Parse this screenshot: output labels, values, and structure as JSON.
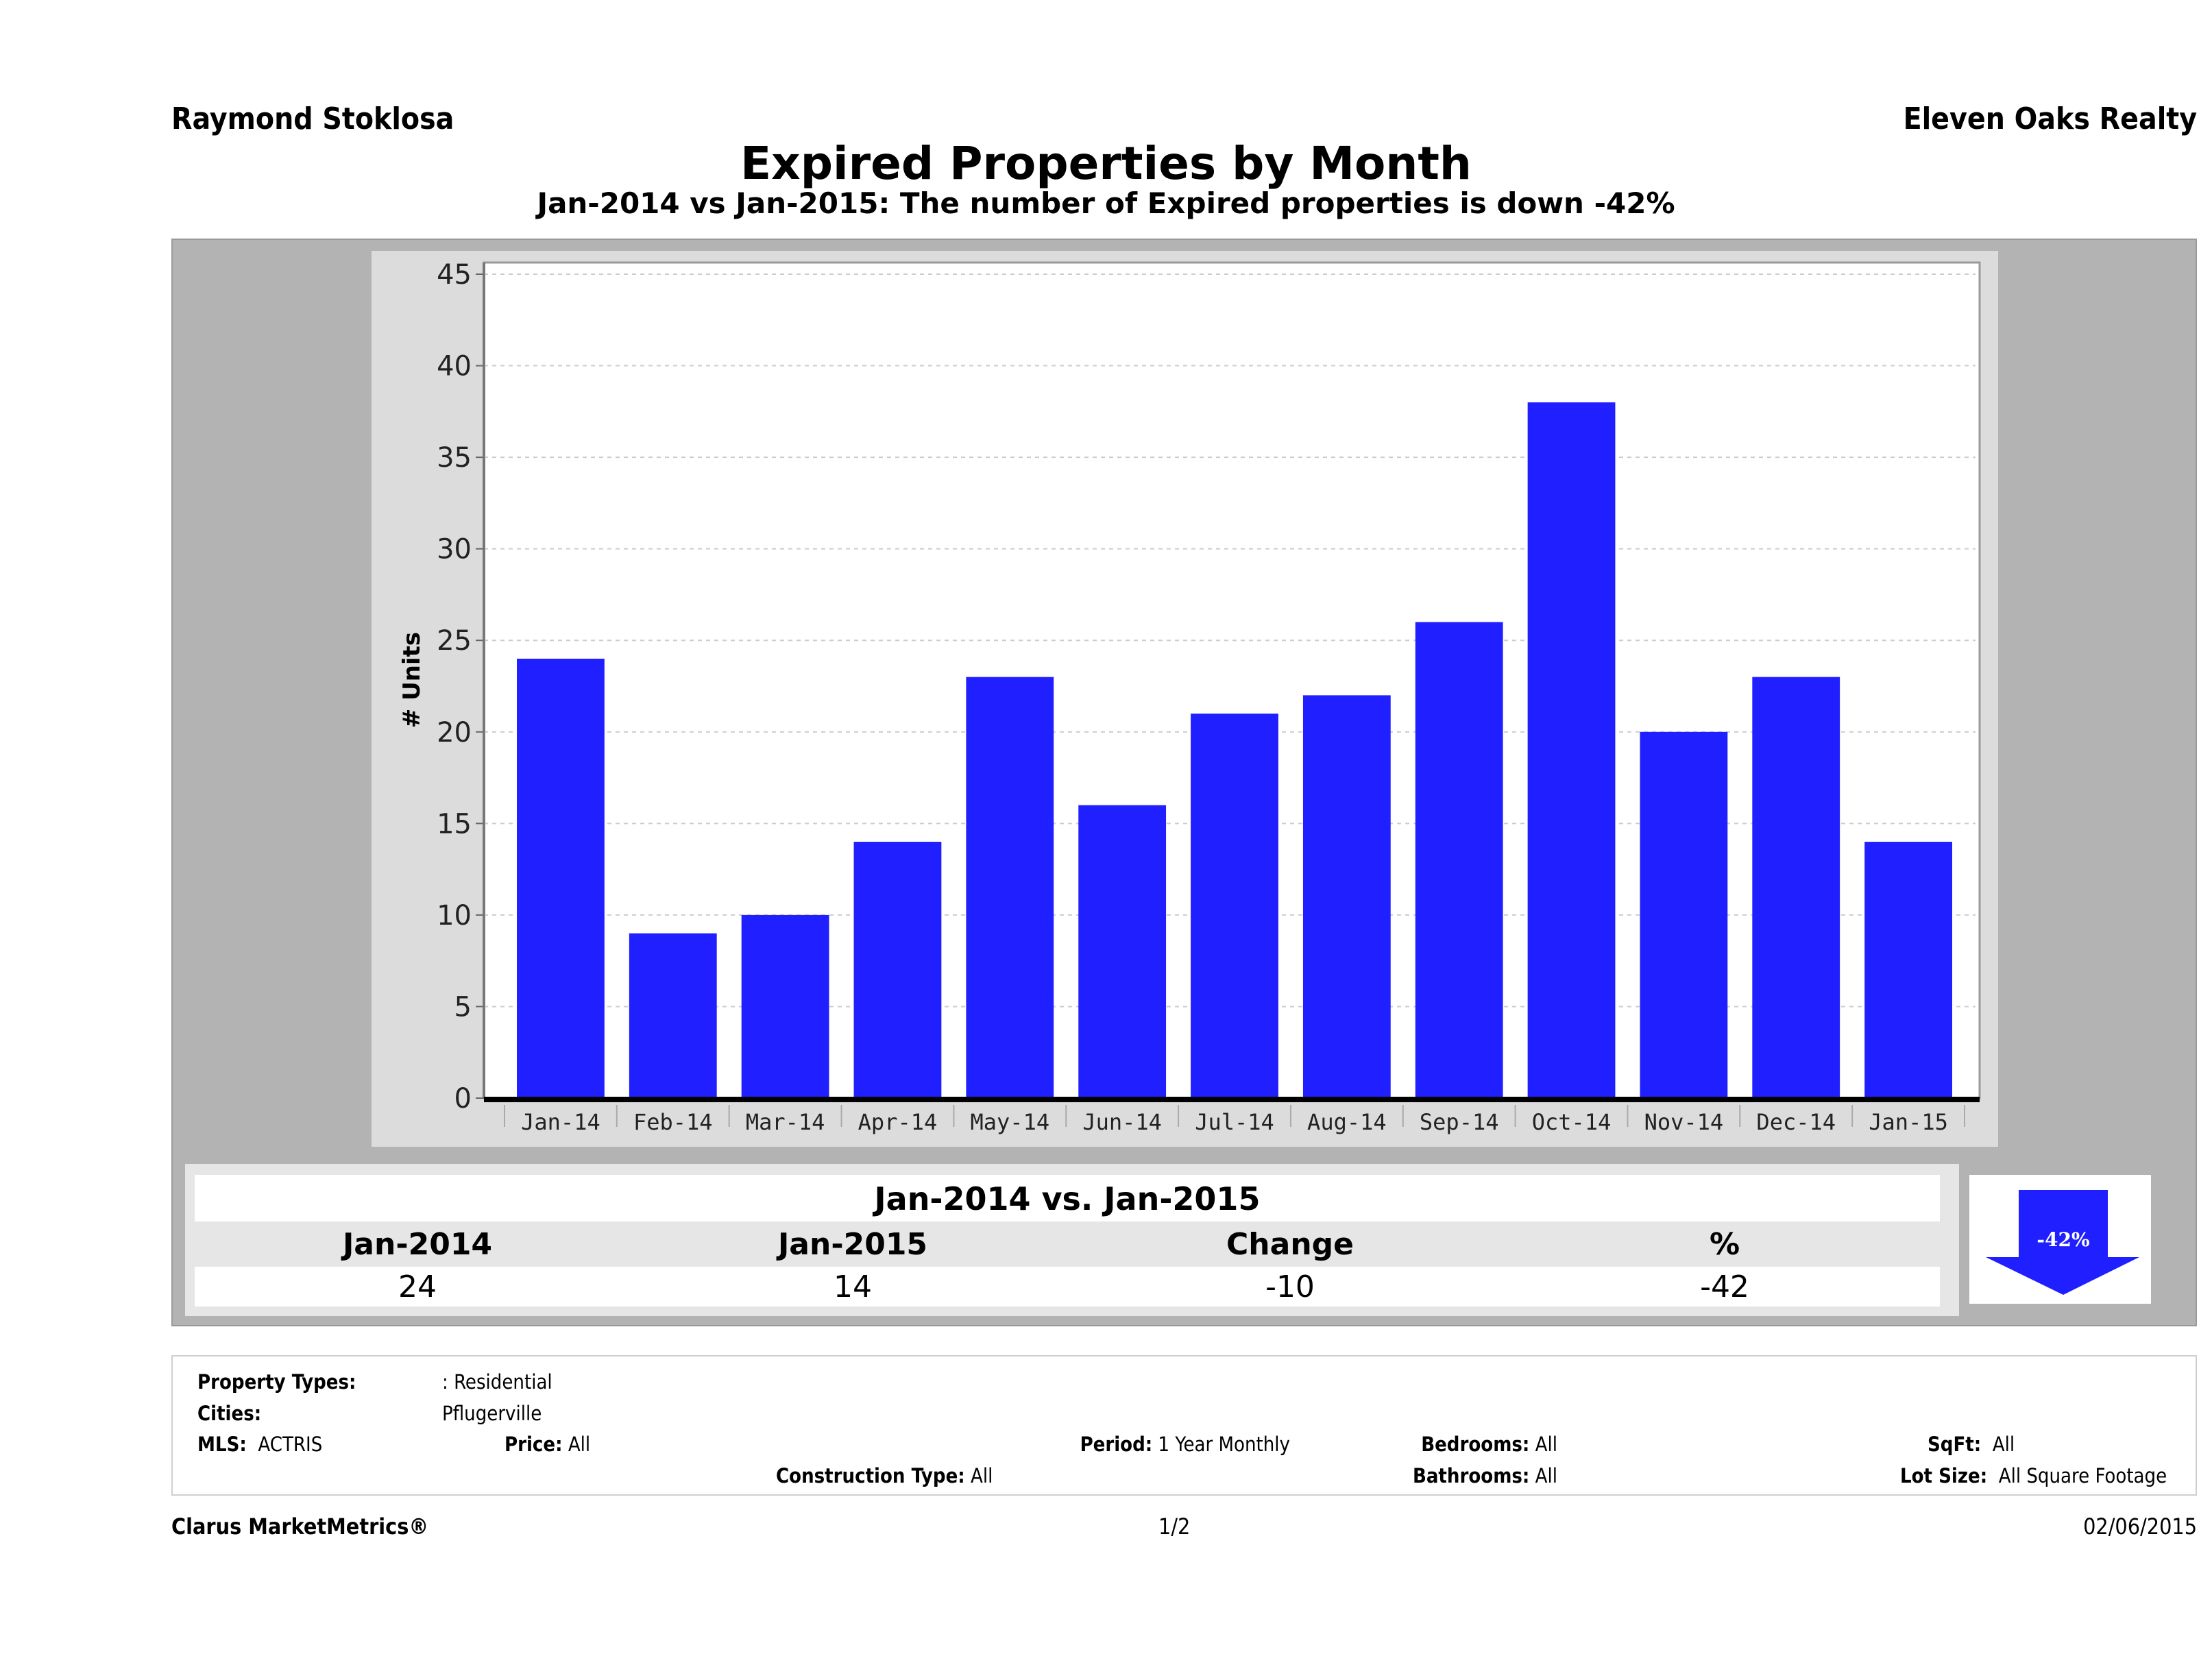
{
  "header": {
    "agent_name": "Raymond Stoklosa",
    "brokerage": "Eleven Oaks Realty",
    "title": "Expired Properties by Month",
    "subtitle": "Jan-2014 vs Jan-2015: The number of Expired  properties is down -42%"
  },
  "chart_data": {
    "type": "bar",
    "title": "Expired Properties by Month",
    "xlabel": "",
    "ylabel": "# Units",
    "categories": [
      "Jan-14",
      "Feb-14",
      "Mar-14",
      "Apr-14",
      "May-14",
      "Jun-14",
      "Jul-14",
      "Aug-14",
      "Sep-14",
      "Oct-14",
      "Nov-14",
      "Dec-14",
      "Jan-15"
    ],
    "values": [
      24,
      9,
      10,
      14,
      23,
      16,
      21,
      22,
      26,
      38,
      20,
      23,
      14
    ],
    "ylim": [
      0,
      45
    ],
    "yticks": [
      0,
      5,
      10,
      15,
      20,
      25,
      30,
      35,
      40,
      45
    ],
    "grid": true,
    "bar_color": "#1f1fff",
    "legend": "none"
  },
  "summary": {
    "title": "Jan-2014 vs. Jan-2015",
    "headers": [
      "Jan-2014",
      "Jan-2015",
      "Change",
      "%"
    ],
    "values": [
      "24",
      "14",
      "-10",
      "-42"
    ],
    "arrow_label": "-42%",
    "arrow_direction": "down",
    "arrow_color": "#1f1fff"
  },
  "filters": {
    "property_types_label": "Property Types:",
    "property_types_value": ": Residential",
    "cities_label": "Cities:",
    "cities_value": "Pflugerville",
    "mls_label": "MLS:",
    "mls_value": "ACTRIS",
    "price_label": "Price:",
    "price_value": "All",
    "period_label": "Period:",
    "period_value": "1 Year Monthly",
    "construction_label": "Construction Type:",
    "construction_value": "All",
    "bedrooms_label": "Bedrooms:",
    "bedrooms_value": "All",
    "bathrooms_label": "Bathrooms:",
    "bathrooms_value": "All",
    "sqft_label": "SqFt:",
    "sqft_value": "All",
    "lot_size_label": "Lot Size:",
    "lot_size_value": "All Square Footage"
  },
  "footer": {
    "brand": "Clarus MarketMetrics®",
    "page": "1/2",
    "date": "02/06/2015"
  }
}
